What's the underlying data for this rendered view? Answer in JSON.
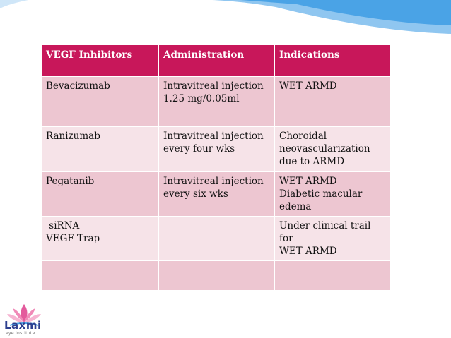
{
  "table": {
    "headers": [
      "VEGF Inhibitors",
      "Administration",
      "Indications"
    ],
    "rows": [
      {
        "inhibitor": [
          "Bevacizumab"
        ],
        "administration": [
          "Intravitreal injection",
          "1.25 mg/0.05ml"
        ],
        "indications": [
          "WET ARMD"
        ]
      },
      {
        "inhibitor": [
          "Ranizumab"
        ],
        "administration": [
          "Intravitreal injection",
          "every four wks"
        ],
        "indications": [
          "Choroidal",
          "neovascularization",
          "due to ARMD"
        ]
      },
      {
        "inhibitor": [
          "Pegatanib"
        ],
        "administration": [
          "Intravitreal injection",
          "every six wks"
        ],
        "indications": [
          "WET ARMD",
          "Diabetic macular",
          "edema"
        ]
      },
      {
        "inhibitor": [
          " siRNA",
          "VEGF Trap"
        ],
        "administration": [],
        "indications": [
          "Under clinical trail for",
          "WET ARMD"
        ]
      },
      {
        "inhibitor": [],
        "administration": [],
        "indications": []
      }
    ]
  },
  "logo": {
    "name": "Laxmi",
    "subtitle": "eye institute"
  },
  "colors": {
    "header": "#c8175a",
    "row_dark": "#edc6d1",
    "row_light": "#f6e3e8",
    "accent_blue": "#4aa3e6"
  }
}
